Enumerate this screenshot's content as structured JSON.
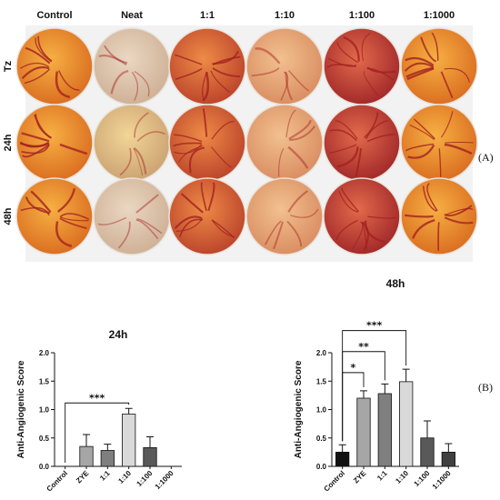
{
  "panel_a": {
    "label": "(A)",
    "columns": [
      "Control",
      "Neat",
      "1:1",
      "1:10",
      "1:100",
      "1:1000"
    ],
    "rows": [
      "Tz",
      "24h",
      "48h"
    ],
    "plates": [
      [
        "orange",
        "pale",
        "orange-red",
        "pale-orange",
        "red-dark",
        "orange"
      ],
      [
        "orange",
        "pale-yellow",
        "orange-red",
        "pale-orange",
        "red-dark",
        "orange"
      ],
      [
        "orange",
        "pale",
        "orange-red",
        "pale-orange",
        "red-dark",
        "orange"
      ]
    ],
    "colors": {
      "orange": [
        "#f6b043",
        "#d96a1f"
      ],
      "pale": [
        "#ead7c2",
        "#cdae93"
      ],
      "pale-yellow": [
        "#f2d597",
        "#c9a070"
      ],
      "orange-red": [
        "#ee8b46",
        "#b9402a"
      ],
      "pale-orange": [
        "#f2c08f",
        "#d88b5f"
      ],
      "red-dark": [
        "#e26a4b",
        "#9e2528"
      ],
      "vessel": "#a3201f"
    }
  },
  "panel_b_label": "(B)",
  "chart_data": [
    {
      "type": "bar",
      "title": "24h",
      "ylabel": "Anti-Angiogenic Score",
      "xlabel": "",
      "categories": [
        "Control",
        "ZYE",
        "1:1",
        "1:10",
        "1:100",
        "1:1000"
      ],
      "values": [
        0.0,
        0.35,
        0.28,
        0.92,
        0.33,
        0.0
      ],
      "errors": [
        0.0,
        0.21,
        0.11,
        0.1,
        0.19,
        0.0
      ],
      "bar_colors": [
        "#111111",
        "#a6a6a6",
        "#7f7f7f",
        "#d9d9d9",
        "#595959",
        "#404040"
      ],
      "ylim": [
        0,
        2.0
      ],
      "yticks": [
        0.0,
        0.5,
        1.0,
        1.5,
        2.0
      ],
      "ytick_labels": [
        "0.0",
        "0.5",
        "1.0",
        "1.5",
        "2.0"
      ],
      "significance": [
        {
          "from": "Control",
          "to": "1:10",
          "label": "***"
        }
      ]
    },
    {
      "type": "bar",
      "title": "48h",
      "ylabel": "Anti-Angiogenic Score",
      "xlabel": "",
      "categories": [
        "Control",
        "ZYE",
        "1:1",
        "1:10",
        "1:100",
        "1:1000"
      ],
      "values": [
        0.25,
        1.2,
        1.28,
        1.49,
        0.5,
        0.25
      ],
      "errors": [
        0.13,
        0.13,
        0.17,
        0.22,
        0.3,
        0.15
      ],
      "bar_colors": [
        "#111111",
        "#a6a6a6",
        "#7f7f7f",
        "#d9d9d9",
        "#595959",
        "#404040"
      ],
      "ylim": [
        0,
        2.0
      ],
      "yticks": [
        0.0,
        0.5,
        1.0,
        1.5,
        2.0
      ],
      "ytick_labels": [
        "0.0",
        "0.5",
        "1.0",
        "1.5",
        "2.0"
      ],
      "significance": [
        {
          "from": "Control",
          "to": "ZYE",
          "label": "*"
        },
        {
          "from": "Control",
          "to": "1:1",
          "label": "**"
        },
        {
          "from": "Control",
          "to": "1:10",
          "label": "***"
        }
      ]
    }
  ]
}
